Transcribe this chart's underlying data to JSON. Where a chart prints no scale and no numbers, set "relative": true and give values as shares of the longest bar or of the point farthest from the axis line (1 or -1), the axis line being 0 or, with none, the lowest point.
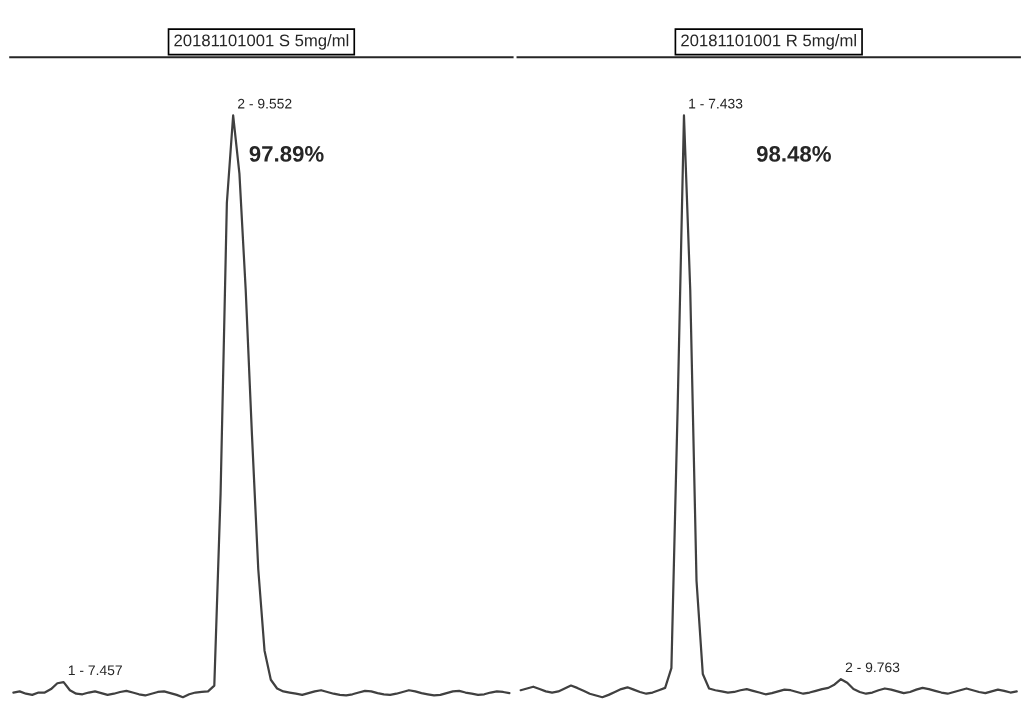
{
  "chart_data": [
    {
      "type": "line",
      "title": "20181101001 S 5mg/ml",
      "relative": true,
      "grid": false,
      "legend": false,
      "categories": [
        null,
        null,
        null,
        null,
        null,
        null,
        null,
        null,
        null,
        null,
        null,
        null,
        null,
        null,
        null,
        null,
        null,
        null,
        null,
        null,
        null,
        null,
        null,
        null,
        null,
        null,
        null,
        null,
        null,
        null,
        null,
        null,
        null,
        null,
        null,
        null,
        null,
        null,
        null,
        null,
        null,
        null,
        null,
        null,
        null,
        null,
        null,
        null,
        null,
        null,
        null,
        null,
        null,
        null,
        null,
        null,
        null,
        null,
        null,
        null,
        null,
        null,
        null,
        null,
        null,
        null,
        null,
        null,
        null,
        null,
        null,
        null,
        null,
        null,
        null,
        null,
        null,
        null,
        null,
        null
      ],
      "series": [
        {
          "color": "#404040",
          "values": [
            0.008,
            0.01,
            0.006,
            0.004,
            0.008,
            0.008,
            0.014,
            0.024,
            0.026,
            0.012,
            0.006,
            0.005,
            0.008,
            0.01,
            0.007,
            0.004,
            0.006,
            0.009,
            0.011,
            0.008,
            0.005,
            0.003,
            0.006,
            0.009,
            0.01,
            0.007,
            0.004,
            0.0,
            0.005,
            0.008,
            0.009,
            0.01,
            0.02,
            0.35,
            0.85,
            1.0,
            0.9,
            0.7,
            0.45,
            0.22,
            0.08,
            0.03,
            0.015,
            0.01,
            0.008,
            0.006,
            0.004,
            0.007,
            0.01,
            0.012,
            0.009,
            0.006,
            0.004,
            0.003,
            0.005,
            0.008,
            0.011,
            0.01,
            0.007,
            0.005,
            0.004,
            0.006,
            0.009,
            0.012,
            0.01,
            0.007,
            0.005,
            0.003,
            0.004,
            0.007,
            0.01,
            0.011,
            0.008,
            0.006,
            0.004,
            0.005,
            0.008,
            0.01,
            0.009,
            0.007
          ]
        }
      ],
      "annotations": [
        "2 - 9.552",
        "1 - 7.457",
        "97.89%"
      ]
    },
    {
      "type": "line",
      "title": "20181101001 R 5mg/ml",
      "relative": true,
      "grid": false,
      "legend": false,
      "categories": [
        null,
        null,
        null,
        null,
        null,
        null,
        null,
        null,
        null,
        null,
        null,
        null,
        null,
        null,
        null,
        null,
        null,
        null,
        null,
        null,
        null,
        null,
        null,
        null,
        null,
        null,
        null,
        null,
        null,
        null,
        null,
        null,
        null,
        null,
        null,
        null,
        null,
        null,
        null,
        null,
        null,
        null,
        null,
        null,
        null,
        null,
        null,
        null,
        null,
        null,
        null,
        null,
        null,
        null,
        null,
        null,
        null,
        null,
        null,
        null,
        null,
        null,
        null,
        null,
        null,
        null,
        null,
        null,
        null,
        null,
        null,
        null,
        null,
        null,
        null,
        null,
        null,
        null,
        null,
        null
      ],
      "series": [
        {
          "color": "#404040",
          "values": [
            0.012,
            0.015,
            0.018,
            0.014,
            0.01,
            0.008,
            0.01,
            0.015,
            0.02,
            0.016,
            0.011,
            0.006,
            0.003,
            0.0,
            0.004,
            0.009,
            0.014,
            0.017,
            0.013,
            0.009,
            0.006,
            0.008,
            0.012,
            0.016,
            0.05,
            0.5,
            1.0,
            0.7,
            0.2,
            0.04,
            0.015,
            0.012,
            0.01,
            0.008,
            0.009,
            0.012,
            0.014,
            0.011,
            0.008,
            0.005,
            0.007,
            0.01,
            0.013,
            0.012,
            0.009,
            0.006,
            0.008,
            0.011,
            0.014,
            0.016,
            0.022,
            0.031,
            0.025,
            0.014,
            0.009,
            0.006,
            0.008,
            0.012,
            0.015,
            0.013,
            0.01,
            0.007,
            0.009,
            0.013,
            0.016,
            0.014,
            0.011,
            0.008,
            0.006,
            0.009,
            0.012,
            0.015,
            0.012,
            0.009,
            0.007,
            0.01,
            0.013,
            0.011,
            0.008,
            0.01
          ]
        }
      ],
      "annotations": [
        "1 - 7.433",
        "2 - 9.763",
        "98.48%"
      ]
    }
  ]
}
